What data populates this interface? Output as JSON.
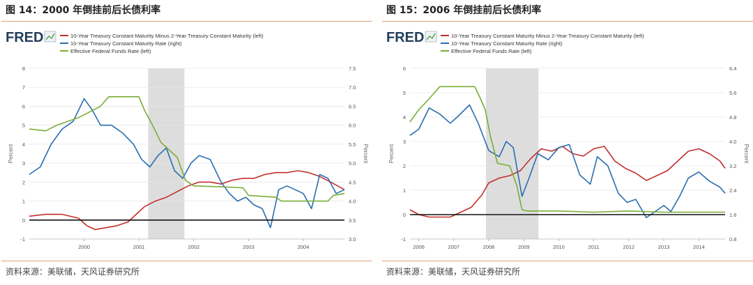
{
  "charts": [
    {
      "figure_title": "图 14：2000 年倒挂前后长债利率",
      "source": "资料来源：美联储，天风证券研究所",
      "logo": "FRED",
      "colors": {
        "spread": "#c0302c",
        "treasury10": "#2a6db0",
        "fedfunds": "#79ad36",
        "recession": "#dddddd",
        "zero_line": "#111111"
      }
    },
    {
      "figure_title": "图 15：2006 年倒挂前后长债利率",
      "source": "资料来源：美联储，天风证券研究所",
      "logo": "FRED",
      "colors": {
        "spread": "#c0302c",
        "treasury10": "#2a6db0",
        "fedfunds": "#79ad36",
        "recession": "#dddddd",
        "zero_line": "#111111"
      }
    }
  ],
  "chart_data": [
    {
      "type": "line",
      "legend": [
        "10-Year Treasury Constant Maturity Minus 2-Year Treasury Constant Maturity (left)",
        "10-Year Treasury Constant Maturity Rate (right)",
        "Effective Federal Funds Rate (left)"
      ],
      "ylabel": "Percent",
      "ylabel_right": "Percent",
      "ylim": [
        -1,
        8
      ],
      "ylim_right": [
        3.0,
        7.5
      ],
      "yticks": [
        "-1",
        "0",
        "1",
        "2",
        "3",
        "4",
        "5",
        "6",
        "7",
        "8"
      ],
      "yticks_right": [
        "3.0",
        "3.5",
        "4.0",
        "4.5",
        "5.0",
        "5.5",
        "6.0",
        "6.5",
        "7.0",
        "7.5"
      ],
      "xlim": [
        1999.0,
        2004.75
      ],
      "xticks": [
        "2000",
        "2001",
        "2002",
        "2003",
        "2004"
      ],
      "recession": [
        2001.17,
        2001.83
      ],
      "series": [
        {
          "name": "10-Year Treasury Constant Maturity Minus 2-Year Treasury Constant Maturity (left)",
          "axis": "left",
          "x": [
            1999.0,
            1999.3,
            1999.6,
            1999.9,
            2000.05,
            2000.2,
            2000.4,
            2000.6,
            2000.8,
            2000.95,
            2001.1,
            2001.3,
            2001.5,
            2001.7,
            2001.9,
            2002.1,
            2002.3,
            2002.5,
            2002.7,
            2002.9,
            2003.1,
            2003.3,
            2003.5,
            2003.7,
            2003.9,
            2004.1,
            2004.3,
            2004.5,
            2004.75
          ],
          "y": [
            0.2,
            0.3,
            0.3,
            0.1,
            -0.3,
            -0.5,
            -0.4,
            -0.3,
            -0.1,
            0.3,
            0.7,
            1.0,
            1.2,
            1.5,
            1.8,
            2.0,
            2.0,
            1.9,
            2.1,
            2.2,
            2.2,
            2.4,
            2.5,
            2.5,
            2.6,
            2.5,
            2.3,
            2.0,
            1.6
          ]
        },
        {
          "name": "10-Year Treasury Constant Maturity Rate (right)",
          "axis": "right",
          "x": [
            1999.0,
            1999.2,
            1999.4,
            1999.6,
            1999.8,
            2000.0,
            2000.15,
            2000.3,
            2000.5,
            2000.7,
            2000.9,
            2001.05,
            2001.2,
            2001.35,
            2001.5,
            2001.65,
            2001.8,
            2001.95,
            2002.1,
            2002.3,
            2002.5,
            2002.65,
            2002.8,
            2002.95,
            2003.1,
            2003.25,
            2003.4,
            2003.55,
            2003.7,
            2003.85,
            2004.0,
            2004.15,
            2004.3,
            2004.45,
            2004.6,
            2004.75
          ],
          "y": [
            4.7,
            4.9,
            5.5,
            5.9,
            6.1,
            6.7,
            6.4,
            6.0,
            6.0,
            5.8,
            5.5,
            5.1,
            4.9,
            5.2,
            5.4,
            4.8,
            4.6,
            5.0,
            5.2,
            5.1,
            4.5,
            4.2,
            4.0,
            4.1,
            3.9,
            3.8,
            3.3,
            4.3,
            4.4,
            4.3,
            4.2,
            3.8,
            4.7,
            4.6,
            4.2,
            4.3
          ]
        },
        {
          "name": "Effective Federal Funds Rate (left)",
          "axis": "left",
          "x": [
            1999.0,
            1999.3,
            1999.5,
            1999.7,
            1999.9,
            2000.1,
            2000.3,
            2000.45,
            2000.6,
            2001.0,
            2001.1,
            2001.25,
            2001.4,
            2001.55,
            2001.7,
            2001.85,
            2002.0,
            2002.5,
            2002.9,
            2003.0,
            2003.5,
            2003.6,
            2004.0,
            2004.45,
            2004.55,
            2004.75
          ],
          "y": [
            4.8,
            4.7,
            5.0,
            5.2,
            5.4,
            5.7,
            6.0,
            6.5,
            6.5,
            6.5,
            5.8,
            5.0,
            4.1,
            3.7,
            3.3,
            2.1,
            1.8,
            1.75,
            1.7,
            1.3,
            1.2,
            1.0,
            1.0,
            1.0,
            1.3,
            1.4
          ]
        }
      ]
    },
    {
      "type": "line",
      "legend": [
        "10-Year Treasury Constant Maturity Minus 2-Year Treasury Constant Maturity (left)",
        "10-Year Treasury Constant Maturity Rate (right)",
        "Effective Federal Funds Rate (left)"
      ],
      "ylabel": "Percent",
      "ylabel_right": "Percent",
      "ylim": [
        -1,
        6
      ],
      "ylim_right": [
        0.8,
        6.4
      ],
      "yticks": [
        "-1",
        "0",
        "1",
        "2",
        "3",
        "4",
        "5",
        "6"
      ],
      "yticks_right": [
        "0.8",
        "1.6",
        "2.4",
        "3.2",
        "4.0",
        "4.8",
        "5.6",
        "6.4"
      ],
      "xlim": [
        2005.75,
        2014.75
      ],
      "xticks": [
        "2006",
        "2007",
        "2008",
        "2009",
        "2010",
        "2011",
        "2012",
        "2013",
        "2014"
      ],
      "recession": [
        2007.92,
        2009.42
      ],
      "series": [
        {
          "name": "10-Year Treasury Constant Maturity Minus 2-Year Treasury Constant Maturity (left)",
          "axis": "left",
          "x": [
            2005.75,
            2006.0,
            2006.3,
            2006.6,
            2006.9,
            2007.2,
            2007.5,
            2007.8,
            2008.0,
            2008.3,
            2008.6,
            2008.9,
            2009.2,
            2009.5,
            2009.8,
            2010.1,
            2010.4,
            2010.7,
            2011.0,
            2011.3,
            2011.6,
            2011.9,
            2012.2,
            2012.5,
            2012.8,
            2013.1,
            2013.4,
            2013.7,
            2014.0,
            2014.3,
            2014.6,
            2014.75
          ],
          "y": [
            0.2,
            0.0,
            -0.1,
            -0.1,
            -0.1,
            0.1,
            0.3,
            0.8,
            1.3,
            1.5,
            1.6,
            1.8,
            2.3,
            2.7,
            2.6,
            2.8,
            2.5,
            2.4,
            2.7,
            2.8,
            2.2,
            1.9,
            1.7,
            1.4,
            1.6,
            1.8,
            2.2,
            2.6,
            2.7,
            2.5,
            2.2,
            1.9
          ]
        },
        {
          "name": "10-Year Treasury Constant Maturity Rate (right)",
          "axis": "right",
          "x": [
            2005.75,
            2006.0,
            2006.3,
            2006.6,
            2006.9,
            2007.1,
            2007.45,
            2007.7,
            2008.0,
            2008.3,
            2008.5,
            2008.7,
            2008.95,
            2009.15,
            2009.4,
            2009.7,
            2010.0,
            2010.3,
            2010.6,
            2010.9,
            2011.1,
            2011.4,
            2011.7,
            2011.95,
            2012.2,
            2012.5,
            2012.75,
            2013.0,
            2013.2,
            2013.45,
            2013.7,
            2014.0,
            2014.3,
            2014.6,
            2014.75
          ],
          "y": [
            4.2,
            4.4,
            5.1,
            4.9,
            4.6,
            4.8,
            5.2,
            4.6,
            3.7,
            3.5,
            4.0,
            3.8,
            2.2,
            2.8,
            3.6,
            3.4,
            3.8,
            3.9,
            2.9,
            2.6,
            3.5,
            3.2,
            2.3,
            2.0,
            2.1,
            1.5,
            1.7,
            1.9,
            1.7,
            2.2,
            2.8,
            3.0,
            2.7,
            2.5,
            2.3
          ]
        },
        {
          "name": "Effective Federal Funds Rate (left)",
          "axis": "left",
          "x": [
            2005.75,
            2006.0,
            2006.2,
            2006.45,
            2006.6,
            2007.0,
            2007.6,
            2007.75,
            2007.9,
            2008.05,
            2008.25,
            2008.6,
            2008.8,
            2008.95,
            2009.1,
            2010.0,
            2011.0,
            2012.0,
            2013.0,
            2014.0,
            2014.75
          ],
          "y": [
            3.8,
            4.3,
            4.6,
            5.0,
            5.25,
            5.25,
            5.25,
            4.8,
            4.3,
            3.2,
            2.1,
            2.0,
            1.2,
            0.2,
            0.15,
            0.15,
            0.1,
            0.15,
            0.1,
            0.1,
            0.1
          ]
        }
      ]
    }
  ]
}
